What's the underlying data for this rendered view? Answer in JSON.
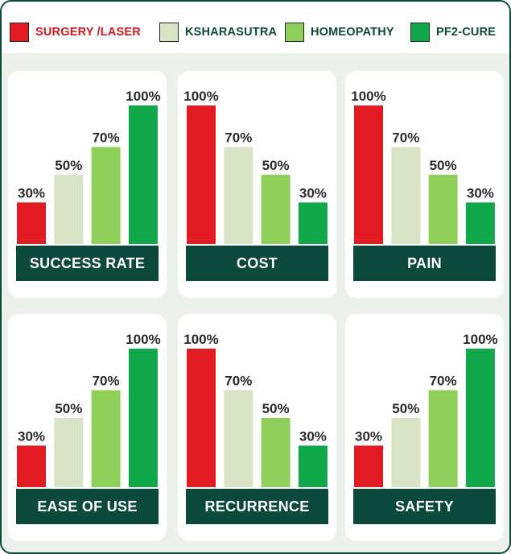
{
  "legend": [
    {
      "label": "SURGERY /LASER",
      "color": "#e21a22",
      "text_color": "#d0191f"
    },
    {
      "label": "KSHARASUTRA",
      "color": "#d8e4c5",
      "text_color": "#0b4a3a"
    },
    {
      "label": "HOMEOPATHY",
      "color": "#8fd05a",
      "text_color": "#0b4a3a"
    },
    {
      "label": "PF2-CURE",
      "color": "#10a84a",
      "text_color": "#0b4a3a"
    }
  ],
  "chart_data": [
    {
      "type": "bar",
      "title": "SUCCESS RATE",
      "categories": [
        "SURGERY /LASER",
        "KSHARASUTRA",
        "HOMEOPATHY",
        "PF2-CURE"
      ],
      "values": [
        30,
        50,
        70,
        100
      ],
      "labels": [
        "30%",
        "50%",
        "70%",
        "100%"
      ],
      "ylim": [
        0,
        100
      ]
    },
    {
      "type": "bar",
      "title": "COST",
      "categories": [
        "SURGERY /LASER",
        "KSHARASUTRA",
        "HOMEOPATHY",
        "PF2-CURE"
      ],
      "values": [
        100,
        70,
        50,
        30
      ],
      "labels": [
        "100%",
        "70%",
        "50%",
        "30%"
      ],
      "ylim": [
        0,
        100
      ]
    },
    {
      "type": "bar",
      "title": "PAIN",
      "categories": [
        "SURGERY /LASER",
        "KSHARASUTRA",
        "HOMEOPATHY",
        "PF2-CURE"
      ],
      "values": [
        100,
        70,
        50,
        30
      ],
      "labels": [
        "100%",
        "70%",
        "50%",
        "30%"
      ],
      "ylim": [
        0,
        100
      ]
    },
    {
      "type": "bar",
      "title": "EASE OF USE",
      "categories": [
        "SURGERY /LASER",
        "KSHARASUTRA",
        "HOMEOPATHY",
        "PF2-CURE"
      ],
      "values": [
        30,
        50,
        70,
        100
      ],
      "labels": [
        "30%",
        "50%",
        "70%",
        "100%"
      ],
      "ylim": [
        0,
        100
      ]
    },
    {
      "type": "bar",
      "title": "RECURRENCE",
      "categories": [
        "SURGERY /LASER",
        "KSHARASUTRA",
        "HOMEOPATHY",
        "PF2-CURE"
      ],
      "values": [
        100,
        70,
        50,
        30
      ],
      "labels": [
        "100%",
        "70%",
        "50%",
        "30%"
      ],
      "ylim": [
        0,
        100
      ]
    },
    {
      "type": "bar",
      "title": "SAFETY",
      "categories": [
        "SURGERY /LASER",
        "KSHARASUTRA",
        "HOMEOPATHY",
        "PF2-CURE"
      ],
      "values": [
        30,
        50,
        70,
        100
      ],
      "labels": [
        "30%",
        "50%",
        "70%",
        "100%"
      ],
      "ylim": [
        0,
        100
      ]
    }
  ]
}
